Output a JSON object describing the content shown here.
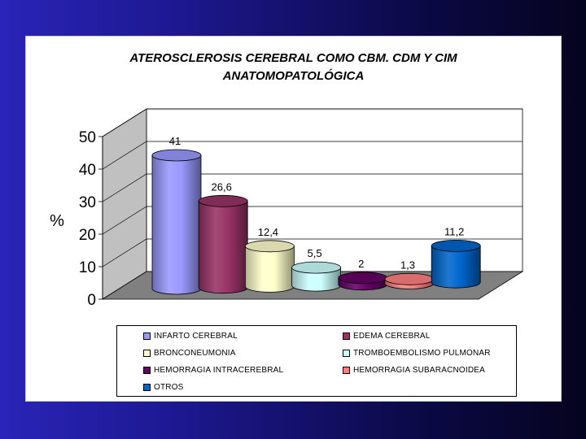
{
  "chart_data": {
    "type": "bar",
    "title_lines": [
      "ATEROSCLEROSIS CEREBRAL COMO CBM. CDM Y CIM",
      "ANATOMOPATOLÓGICA"
    ],
    "ylabel": "%",
    "ylim": [
      0,
      50
    ],
    "yticks": [
      "0",
      "10",
      "20",
      "30",
      "40",
      "50"
    ],
    "three_d": true,
    "bar_shape": "cylinder",
    "grid": true,
    "legend_placement": "bottom",
    "series": [
      {
        "name": "INFARTO CEREBRAL",
        "value": 41,
        "label": "41",
        "color": "#9999ff"
      },
      {
        "name": "EDEMA CEREBRAL",
        "value": 26.6,
        "label": "26,6",
        "color": "#993366"
      },
      {
        "name": "BRONCONEUMONIA",
        "value": 12.4,
        "label": "12,4",
        "color": "#ffffcc"
      },
      {
        "name": "TROMBOEMBOLISMO PULMONAR",
        "value": 5.5,
        "label": "5,5",
        "color": "#ccffff"
      },
      {
        "name": "HEMORRAGIA INTRACEREBRAL",
        "value": 2,
        "label": "2",
        "color": "#660066"
      },
      {
        "name": "HEMORRAGIA SUBARACNOIDEA",
        "value": 1.3,
        "label": "1,3",
        "color": "#ff8080"
      },
      {
        "name": "OTROS",
        "value": 11.2,
        "label": "11,2",
        "color": "#0066cc"
      }
    ]
  }
}
